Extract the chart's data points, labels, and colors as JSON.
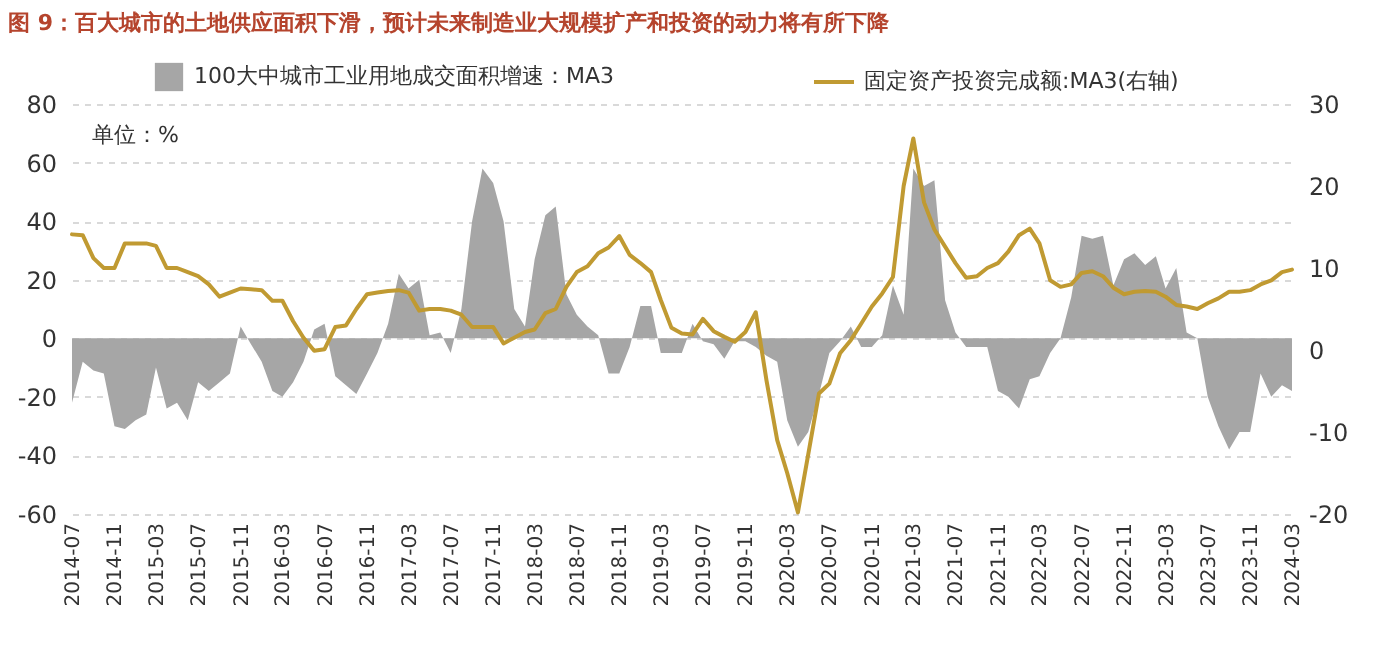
{
  "chart_data": {
    "type": "line",
    "title": "图 9：百大城市的土地供应面积下滑，预计未来制造业大规模扩产和投资的动力将有所下降",
    "annotations": [
      "单位：%"
    ],
    "x": [
      "2014-07",
      "2014-08",
      "2014-09",
      "2014-10",
      "2014-11",
      "2014-12",
      "2015-01",
      "2015-02",
      "2015-03",
      "2015-04",
      "2015-05",
      "2015-06",
      "2015-07",
      "2015-08",
      "2015-09",
      "2015-10",
      "2015-11",
      "2015-12",
      "2016-01",
      "2016-02",
      "2016-03",
      "2016-04",
      "2016-05",
      "2016-06",
      "2016-07",
      "2016-08",
      "2016-09",
      "2016-10",
      "2016-11",
      "2016-12",
      "2017-01",
      "2017-02",
      "2017-03",
      "2017-04",
      "2017-05",
      "2017-06",
      "2017-07",
      "2017-08",
      "2017-09",
      "2017-10",
      "2017-11",
      "2017-12",
      "2018-01",
      "2018-02",
      "2018-03",
      "2018-04",
      "2018-05",
      "2018-06",
      "2018-07",
      "2018-08",
      "2018-09",
      "2018-10",
      "2018-11",
      "2018-12",
      "2019-01",
      "2019-02",
      "2019-03",
      "2019-04",
      "2019-05",
      "2019-06",
      "2019-07",
      "2019-08",
      "2019-09",
      "2019-10",
      "2019-11",
      "2019-12",
      "2020-01",
      "2020-02",
      "2020-03",
      "2020-04",
      "2020-05",
      "2020-06",
      "2020-07",
      "2020-08",
      "2020-09",
      "2020-10",
      "2020-11",
      "2020-12",
      "2021-01",
      "2021-02",
      "2021-03",
      "2021-04",
      "2021-05",
      "2021-06",
      "2021-07",
      "2021-08",
      "2021-09",
      "2021-10",
      "2021-11",
      "2021-12",
      "2022-01",
      "2022-02",
      "2022-03",
      "2022-04",
      "2022-05",
      "2022-06",
      "2022-07",
      "2022-08",
      "2022-09",
      "2022-10",
      "2022-11",
      "2022-12",
      "2023-01",
      "2023-02",
      "2023-03",
      "2023-04",
      "2023-05",
      "2023-06",
      "2023-07",
      "2023-08",
      "2023-09",
      "2023-10",
      "2023-11",
      "2023-12",
      "2024-01",
      "2024-02",
      "2024-03"
    ],
    "series": [
      {
        "name": "100大中城市工业用地成交面积增速：MA3",
        "type": "area",
        "color": "#a6a6a6",
        "values": [
          -22,
          -8,
          -11,
          -12,
          -30,
          -31,
          -28,
          -26,
          -10,
          -24,
          -22,
          -28,
          -15,
          -18,
          -15,
          -12,
          4,
          -2,
          -8,
          -18,
          -20,
          -15,
          -8,
          3,
          5,
          -13,
          -16,
          -19,
          -12,
          -5,
          5,
          22,
          17,
          20,
          1,
          2,
          -5,
          10,
          40,
          58,
          53,
          40,
          10,
          4,
          27,
          42,
          45,
          15,
          8,
          4,
          1,
          -12,
          -12,
          -3,
          11,
          11,
          -5,
          -5,
          -5,
          5,
          -1,
          -2,
          -7,
          -1,
          -1,
          -3,
          -6,
          -8,
          -28,
          -37,
          -32,
          -19,
          -5,
          -1,
          4,
          -3,
          -3,
          1,
          18,
          8,
          58,
          52,
          54,
          13,
          2,
          -3,
          -3,
          -3,
          -18,
          -20,
          -24,
          -14,
          -13,
          -5,
          0,
          14,
          35,
          34,
          35,
          18,
          27,
          29,
          25,
          28,
          17,
          24,
          2,
          0,
          -20,
          -30,
          -38,
          -32,
          -32,
          -12,
          -20,
          -16,
          -18
        ]
      },
      {
        "name": "固定资产投资完成额:MA3(右轴)",
        "axis": "y2",
        "color": "#c09a32",
        "values": [
          14.1,
          14,
          11.2,
          10,
          10,
          13,
          13,
          13,
          12.7,
          10,
          10,
          9.5,
          9,
          8,
          6.5,
          7,
          7.5,
          7.4,
          7.3,
          6,
          6,
          3.5,
          1.5,
          -0.1,
          0.1,
          2.8,
          3,
          5,
          6.8,
          7,
          7.2,
          7.3,
          7,
          4.8,
          5,
          5,
          4.8,
          4.3,
          2.8,
          2.8,
          2.8,
          0.8,
          1.5,
          2.2,
          2.5,
          4.5,
          5,
          7.7,
          9.5,
          10.2,
          11.8,
          12.5,
          13.9,
          11.6,
          10.6,
          9.5,
          6.1,
          2.7,
          2,
          1.9,
          3.8,
          2.3,
          1.6,
          1,
          2.2,
          4.6,
          -3.7,
          -11,
          -15,
          -19.8,
          -12.7,
          -5.3,
          -4.1,
          -0.4,
          1.2,
          3.2,
          5.3,
          6.9,
          8.9,
          20,
          25.8,
          18,
          14.7,
          12.6,
          10.6,
          8.8,
          9,
          10,
          10.6,
          12,
          14,
          14.8,
          13,
          8.5,
          7.7,
          8,
          9.4,
          9.6,
          9,
          7.6,
          6.8,
          7.1,
          7.2,
          7.1,
          6.5,
          5.5,
          5.3,
          5,
          5.7,
          6.3,
          7.1,
          7.1,
          7.3,
          8,
          8.5,
          9.5,
          9.8
        ]
      }
    ],
    "xlim": [
      "2014-07",
      "2024-03"
    ],
    "xticks": [
      "2014-07",
      "2014-11",
      "2015-03",
      "2015-07",
      "2015-11",
      "2016-03",
      "2016-07",
      "2016-11",
      "2017-03",
      "2017-07",
      "2017-11",
      "2018-03",
      "2018-07",
      "2018-11",
      "2019-03",
      "2019-07",
      "2019-11",
      "2020-03",
      "2020-07",
      "2020-11",
      "2021-03",
      "2021-07",
      "2021-11",
      "2022-03",
      "2022-07",
      "2022-11",
      "2023-03",
      "2023-07",
      "2023-11",
      "2024-03"
    ],
    "ylim": [
      -60,
      80
    ],
    "yticks": [
      -60,
      -40,
      -20,
      0,
      20,
      40,
      60,
      80
    ],
    "y2lim": [
      -20,
      30
    ],
    "y2ticks": [
      -20,
      -10,
      0,
      10,
      20,
      30
    ],
    "grid": "y",
    "legend": "top"
  }
}
